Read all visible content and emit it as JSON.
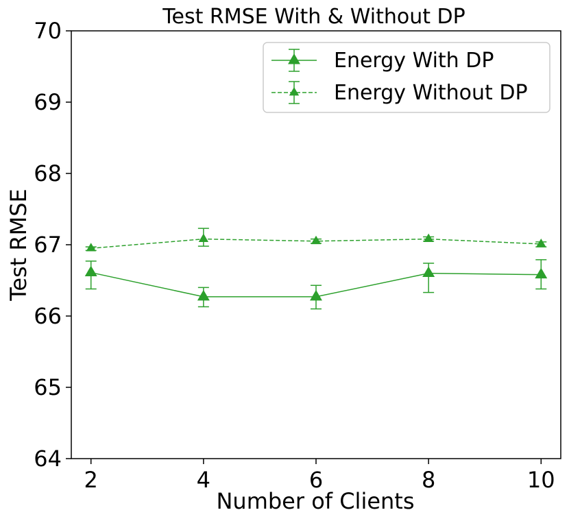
{
  "chart_data": {
    "type": "line",
    "title": "Test RMSE With & Without DP",
    "xlabel": "Number of Clients",
    "ylabel": "Test RMSE",
    "x": [
      2,
      4,
      6,
      8,
      10
    ],
    "xlim": [
      1.65,
      10.35
    ],
    "ylim": [
      64,
      70
    ],
    "xticks": [
      "2",
      "4",
      "6",
      "8",
      "10"
    ],
    "yticks": [
      "64",
      "65",
      "66",
      "67",
      "68",
      "69",
      "70"
    ],
    "grid": false,
    "legend_position": "top-right",
    "series": [
      {
        "name": "Energy With DP",
        "style": "solid",
        "marker": "triangle-up",
        "color": "#2ca02c",
        "values": [
          66.61,
          66.27,
          66.27,
          66.6,
          66.58
        ],
        "err_low": [
          66.38,
          66.13,
          66.1,
          66.33,
          66.38
        ],
        "err_high": [
          66.77,
          66.4,
          66.43,
          66.74,
          66.79
        ]
      },
      {
        "name": "Energy Without DP",
        "style": "dashed",
        "marker": "triangle-up",
        "color": "#2ca02c",
        "values": [
          66.95,
          67.08,
          67.05,
          67.08,
          67.01
        ],
        "err_low": [
          66.92,
          66.98,
          67.02,
          67.05,
          66.97
        ],
        "err_high": [
          66.97,
          67.23,
          67.08,
          67.11,
          67.04
        ]
      }
    ]
  }
}
